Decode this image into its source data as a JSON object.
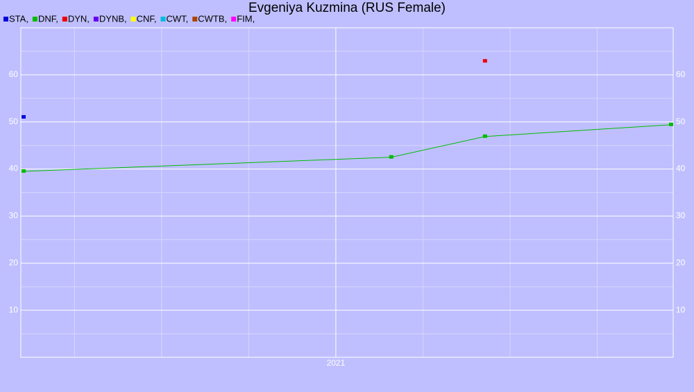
{
  "chart_data": {
    "type": "line",
    "title": "Evgeniya Kuzmina (RUS Female)",
    "series": [
      {
        "name": "STA,",
        "color": "#0000dd",
        "x": [
          2020.104
        ],
        "values": [
          51.0
        ]
      },
      {
        "name": "DNF,",
        "color": "#00bb00",
        "x": [
          2020.104,
          2021.159,
          2021.428,
          2021.962
        ],
        "values": [
          39.5,
          42.5,
          46.9,
          49.4
        ]
      },
      {
        "name": "DYN,",
        "color": "#ee0000",
        "x": [
          2021.428
        ],
        "values": [
          62.9
        ]
      },
      {
        "name": "DYNB,",
        "color": "#6600ee",
        "x": [],
        "values": []
      },
      {
        "name": "CNF,",
        "color": "#ffff00",
        "x": [],
        "values": []
      },
      {
        "name": "CWT,",
        "color": "#00bbdd",
        "x": [],
        "values": []
      },
      {
        "name": "CWTB,",
        "color": "#aa4400",
        "x": [],
        "values": []
      },
      {
        "name": "FIM,",
        "color": "#ff00ff",
        "x": [],
        "values": []
      }
    ],
    "xlim": [
      2020.096,
      2021.968
    ],
    "xticks": [
      2021
    ],
    "xgrid": [
      2020.25,
      2020.5,
      2020.75,
      2021.25,
      2021.5,
      2021.75
    ],
    "ylim": [
      0,
      70
    ],
    "yticks": [
      10,
      20,
      30,
      40,
      50,
      60
    ],
    "yminor": [
      5,
      15,
      25,
      35,
      45,
      55,
      65
    ],
    "grid": true
  }
}
